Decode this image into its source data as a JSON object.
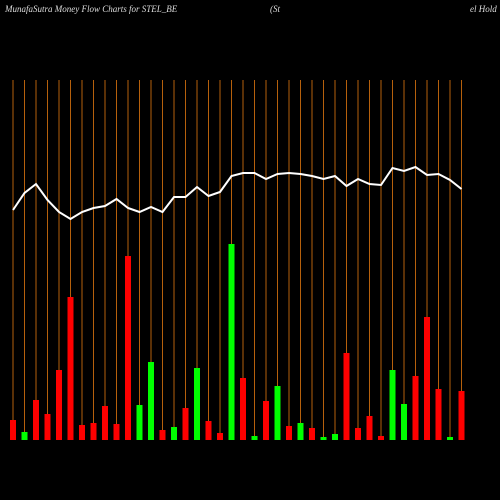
{
  "chart_data": {
    "type": "bar",
    "title": "MunafaSutra  Money Flow  Charts for STEL_BE",
    "title_parts": [
      "(St",
      "el Hold"
    ],
    "values": [
      20,
      8,
      40,
      26,
      70,
      143,
      15,
      17,
      34,
      16,
      184,
      35,
      78,
      10,
      13,
      32,
      72,
      19,
      7,
      196,
      62,
      4,
      39,
      54,
      14,
      17,
      12,
      3,
      6,
      87,
      12,
      24,
      4,
      70,
      36,
      64,
      123,
      51,
      3,
      49
    ],
    "bar_colors": [
      "#ff0000",
      "#00ff00",
      "#ff0000",
      "#ff0000",
      "#ff0000",
      "#ff0000",
      "#ff0000",
      "#ff0000",
      "#ff0000",
      "#ff0000",
      "#ff0000",
      "#00ff00",
      "#00ff00",
      "#ff0000",
      "#00ff00",
      "#ff0000",
      "#00ff00",
      "#ff0000",
      "#ff0000",
      "#00ff00",
      "#ff0000",
      "#00ff00",
      "#ff0000",
      "#00ff00",
      "#ff0000",
      "#00ff00",
      "#ff0000",
      "#00ff00",
      "#00ff00",
      "#ff0000",
      "#ff0000",
      "#ff0000",
      "#ff0000",
      "#00ff00",
      "#00ff00",
      "#ff0000",
      "#ff0000",
      "#ff0000",
      "#00ff00",
      "#ff0000"
    ],
    "line_values": [
      230,
      247,
      256,
      240,
      228,
      221,
      228,
      232,
      234,
      241,
      232,
      228,
      233,
      228,
      243,
      243,
      253,
      244,
      248,
      264,
      267,
      267,
      261,
      266,
      267,
      266,
      264,
      261,
      264,
      254,
      261,
      256,
      255,
      272,
      269,
      273,
      265,
      266,
      260,
      251
    ],
    "line_color": "#ffffff",
    "grid_color": "#b5600c",
    "ylim": [
      0,
      360
    ],
    "grid": true
  }
}
